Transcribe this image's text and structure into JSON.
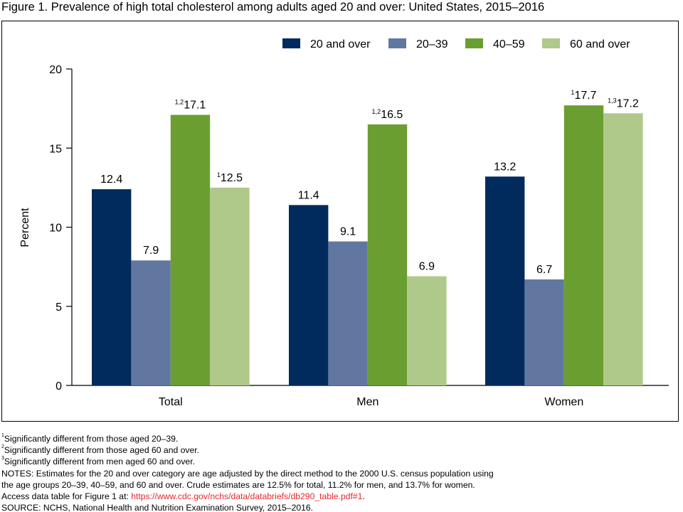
{
  "title": "Figure 1. Prevalence of high total cholesterol among adults aged 20 and over: United States, 2015–2016",
  "chart_data": {
    "type": "bar",
    "title": "Figure 1. Prevalence of high total cholesterol among adults aged 20 and over: United States, 2015–2016",
    "xlabel": "",
    "ylabel": "Percent",
    "ylim": [
      0,
      20
    ],
    "yticks": [
      "0",
      "5",
      "10",
      "15",
      "20"
    ],
    "categories": [
      "Total",
      "Men",
      "Women"
    ],
    "legend_position": "top-right",
    "series": [
      {
        "name": "20 and over",
        "color": "#002b5c",
        "values": [
          12.4,
          11.4,
          13.2
        ],
        "notes": [
          "",
          "",
          ""
        ]
      },
      {
        "name": "20–39",
        "color": "#6277a0",
        "values": [
          7.9,
          9.1,
          6.7
        ],
        "notes": [
          "",
          "",
          ""
        ]
      },
      {
        "name": "40–59",
        "color": "#6b9e31",
        "values": [
          17.1,
          16.5,
          17.7
        ],
        "notes": [
          "1,2",
          "1,2",
          "1"
        ]
      },
      {
        "name": "60 and over",
        "color": "#afc98b",
        "values": [
          12.5,
          6.9,
          17.2
        ],
        "notes": [
          "1",
          "",
          "1,3"
        ]
      }
    ]
  },
  "footnotes": [
    {
      "mark": "1",
      "text": "Significantly different from those aged 20–39."
    },
    {
      "mark": "2",
      "text": "Significantly different from those aged 60 and over."
    },
    {
      "mark": "3",
      "text": "Significantly different from men aged 60 and over."
    }
  ],
  "notes_line1": "NOTES: Estimates for the 20 and over category are age adjusted by the direct method to the 2000 U.S. census population using",
  "notes_line2": "the age groups 20–39, 40–59, and 60 and over. Crude estimates are 12.5% for total, 11.2% for men, and 13.7% for women.",
  "access_prefix": "Access data table for Figure 1 at: ",
  "access_link": "https://www.cdc.gov/nchs/data/databriefs/db290_table.pdf#1",
  "access_suffix": ".",
  "source": "SOURCE: NCHS, National Health and Nutrition Examination Survey, 2015–2016."
}
